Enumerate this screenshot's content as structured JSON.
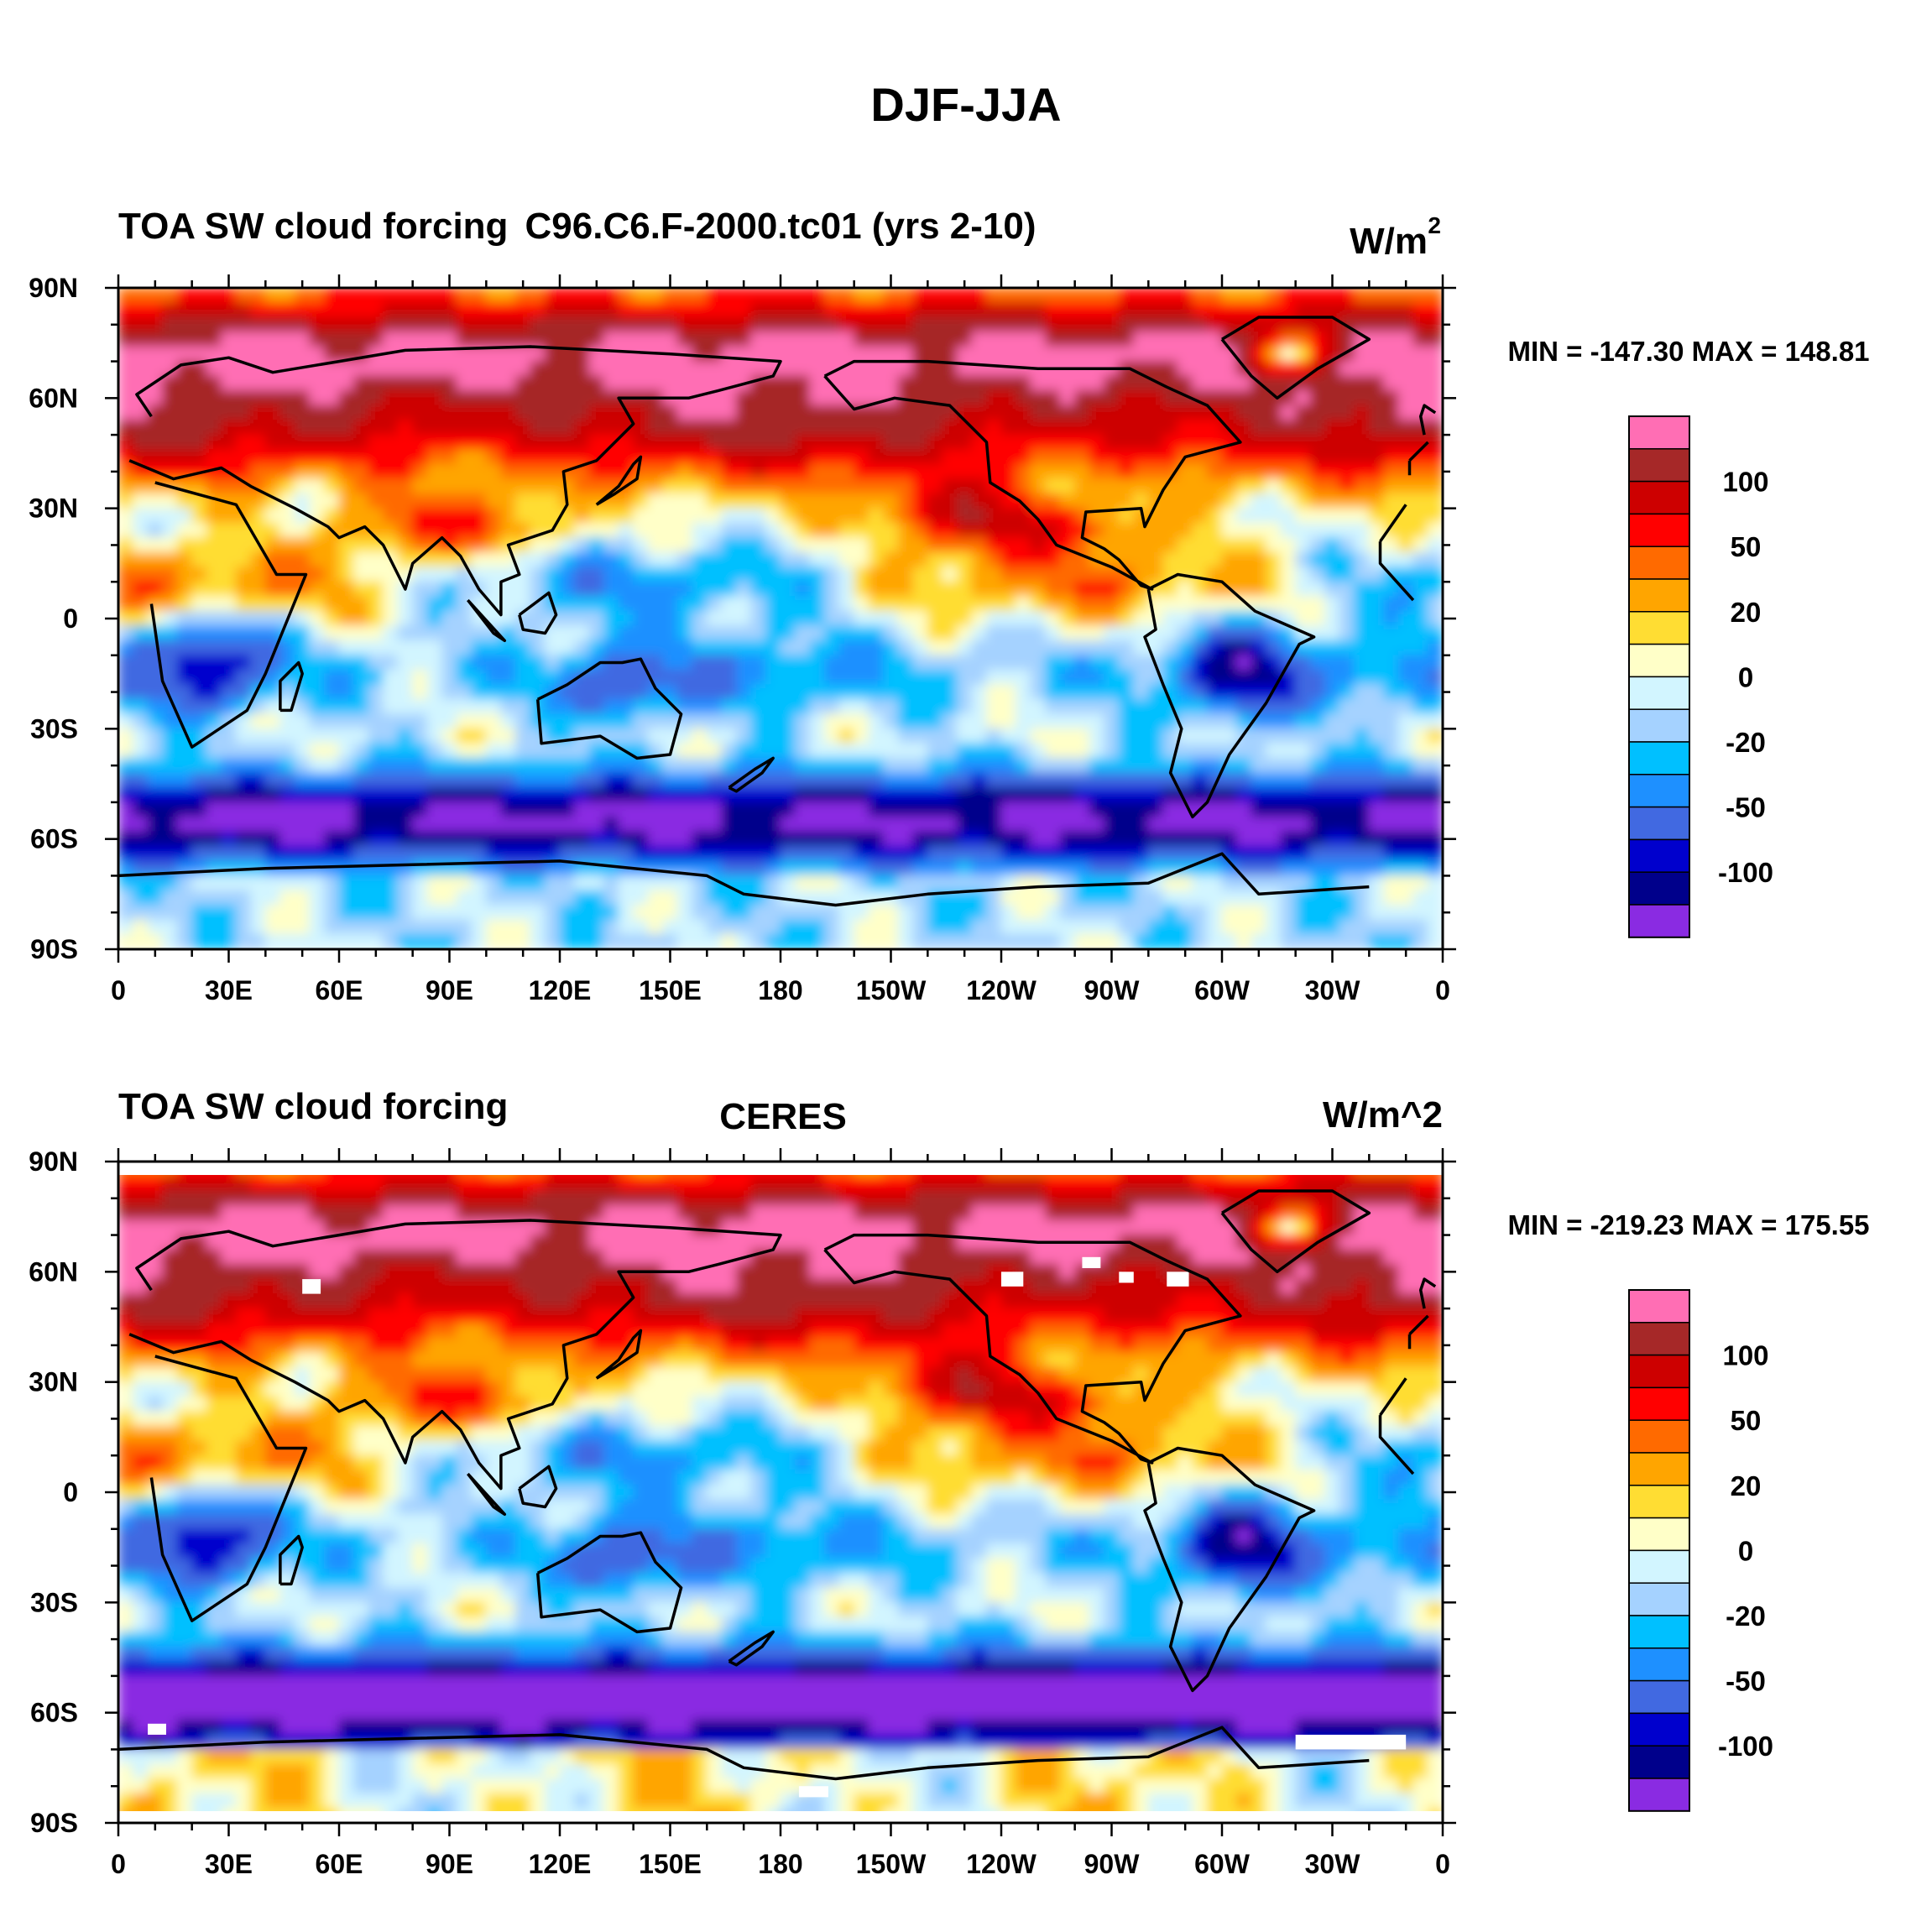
{
  "figure_title": "DJF-JJA",
  "colors": [
    "#ff6eb4",
    "#a62828",
    "#cd0000",
    "#ff0000",
    "#ff6a00",
    "#ffa500",
    "#ffdd33",
    "#ffffc8",
    "#d2f5ff",
    "#a5d2ff",
    "#00c0ff",
    "#1e90ff",
    "#4169e1",
    "#0000cd",
    "#00008b",
    "#8a2be2"
  ],
  "colorbar_labels": [
    "100",
    "50",
    "20",
    "0",
    "-20",
    "-50",
    "-100"
  ],
  "continent_outline_color": "#000000",
  "chart_data": [
    {
      "type": "heatmap",
      "left_title": "TOA SW cloud forcing",
      "center_title": "C96.C6.F-2000.tc01 (yrs 2-10)",
      "units": "W/m",
      "units_sup": "2",
      "stats": "MIN = -147.30 MAX = 148.81",
      "min": -147.3,
      "max": 148.81,
      "x_ticks": [
        "0",
        "30E",
        "60E",
        "90E",
        "120E",
        "150E",
        "180",
        "150W",
        "120W",
        "90W",
        "60W",
        "30W",
        "0"
      ],
      "y_ticks": [
        "90N",
        "60N",
        "30N",
        "0",
        "30S",
        "60S",
        "90S"
      ],
      "lon_range": [
        0,
        360
      ],
      "lat_range": [
        -90,
        90
      ],
      "contour_levels": [
        -150,
        -125,
        -100,
        -75,
        -50,
        -35,
        -20,
        -10,
        0,
        10,
        20,
        35,
        50,
        75,
        100,
        125
      ],
      "land_mask_gaps": false
    },
    {
      "type": "heatmap",
      "left_title": "TOA SW cloud forcing",
      "center_title": "CERES",
      "units": "W/m^2",
      "units_sup": "",
      "stats": "MIN = -219.23 MAX = 175.55",
      "min": -219.23,
      "max": 175.55,
      "x_ticks": [
        "0",
        "30E",
        "60E",
        "90E",
        "120E",
        "150E",
        "180",
        "150W",
        "120W",
        "90W",
        "60W",
        "30W",
        "0"
      ],
      "y_ticks": [
        "90N",
        "60N",
        "30N",
        "0",
        "30S",
        "60S",
        "90S"
      ],
      "lon_range": [
        0,
        360
      ],
      "lat_range": [
        -90,
        90
      ],
      "contour_levels": [
        -150,
        -125,
        -100,
        -75,
        -50,
        -35,
        -20,
        -10,
        0,
        10,
        20,
        35,
        50,
        75,
        100,
        125
      ],
      "land_mask_gaps": true
    }
  ]
}
